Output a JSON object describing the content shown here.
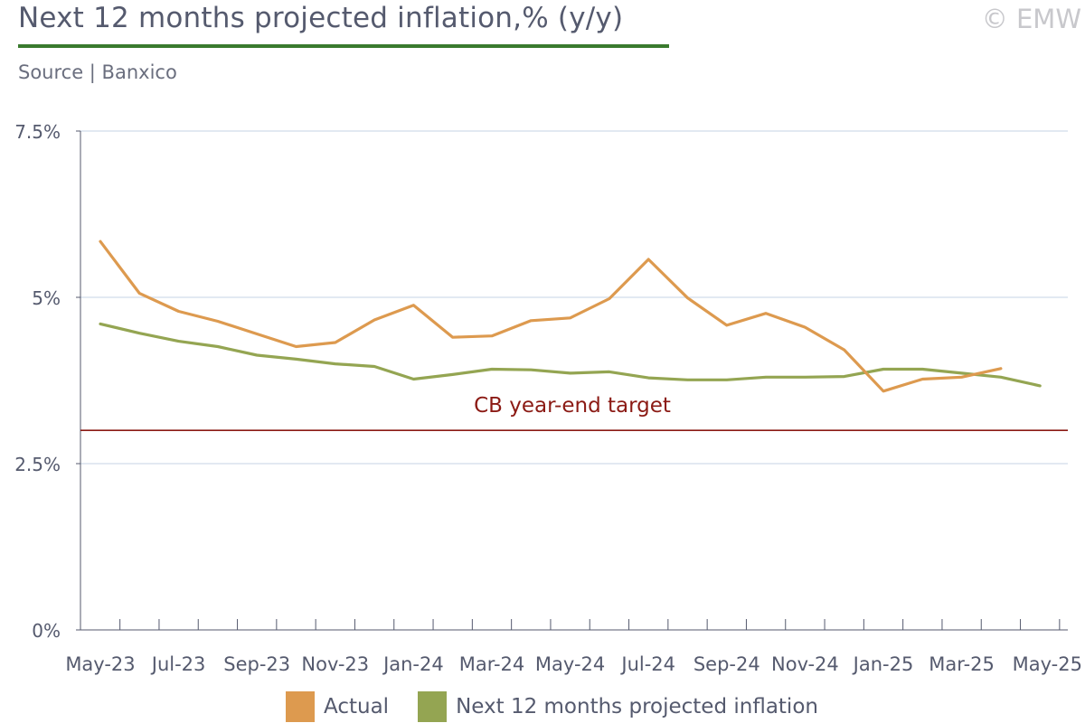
{
  "header": {
    "title": "Next 12 months projected inflation,% (y/y)",
    "source": "Source | Banxico",
    "copyright": "© EMW"
  },
  "colors": {
    "actual": "#dd9a4f",
    "projected": "#94a552",
    "target": "#8b1a14",
    "grid": "#d8e2ee",
    "axis": "#555a6e",
    "title_rule": "#3a7a2e"
  },
  "chart_data": {
    "type": "line",
    "x": [
      "May-23",
      "Jun-23",
      "Jul-23",
      "Aug-23",
      "Sep-23",
      "Oct-23",
      "Nov-23",
      "Dec-23",
      "Jan-24",
      "Feb-24",
      "Mar-24",
      "Apr-24",
      "May-24",
      "Jun-24",
      "Jul-24",
      "Aug-24",
      "Sep-24",
      "Oct-24",
      "Nov-24",
      "Dec-24",
      "Jan-25",
      "Feb-25",
      "Mar-25",
      "Apr-25",
      "May-25"
    ],
    "x_tick_labels": [
      "May-23",
      "Jul-23",
      "Sep-23",
      "Nov-23",
      "Jan-24",
      "Mar-24",
      "May-24",
      "Jul-24",
      "Sep-24",
      "Nov-24",
      "Jan-25",
      "Mar-25",
      "May-25"
    ],
    "y_tick_labels": [
      "0%",
      "2.5%",
      "5%",
      "7.5%"
    ],
    "y_ticks": [
      0,
      2.5,
      5,
      7.5
    ],
    "ylim": [
      0,
      7.5
    ],
    "series": [
      {
        "name": "Actual",
        "color": "#dd9a4f",
        "values": [
          5.84,
          5.06,
          4.79,
          4.64,
          4.45,
          4.26,
          4.32,
          4.66,
          4.88,
          4.4,
          4.42,
          4.65,
          4.69,
          4.98,
          5.57,
          4.99,
          4.58,
          4.76,
          4.55,
          4.21,
          3.59,
          3.77,
          3.8,
          3.93,
          null
        ]
      },
      {
        "name": "Next 12 months projected inflation",
        "color": "#94a552",
        "values": [
          4.6,
          4.46,
          4.34,
          4.26,
          4.13,
          4.07,
          4.0,
          3.96,
          3.77,
          3.84,
          3.92,
          3.91,
          3.86,
          3.88,
          3.79,
          3.76,
          3.76,
          3.8,
          3.8,
          3.81,
          3.92,
          3.92,
          3.86,
          3.8,
          3.67
        ]
      }
    ],
    "reference_line": {
      "label": "CB year-end target",
      "value": 3.0
    },
    "legend": [
      "Actual",
      "Next 12 months projected inflation"
    ],
    "grid": true,
    "legend_position": "bottom"
  }
}
